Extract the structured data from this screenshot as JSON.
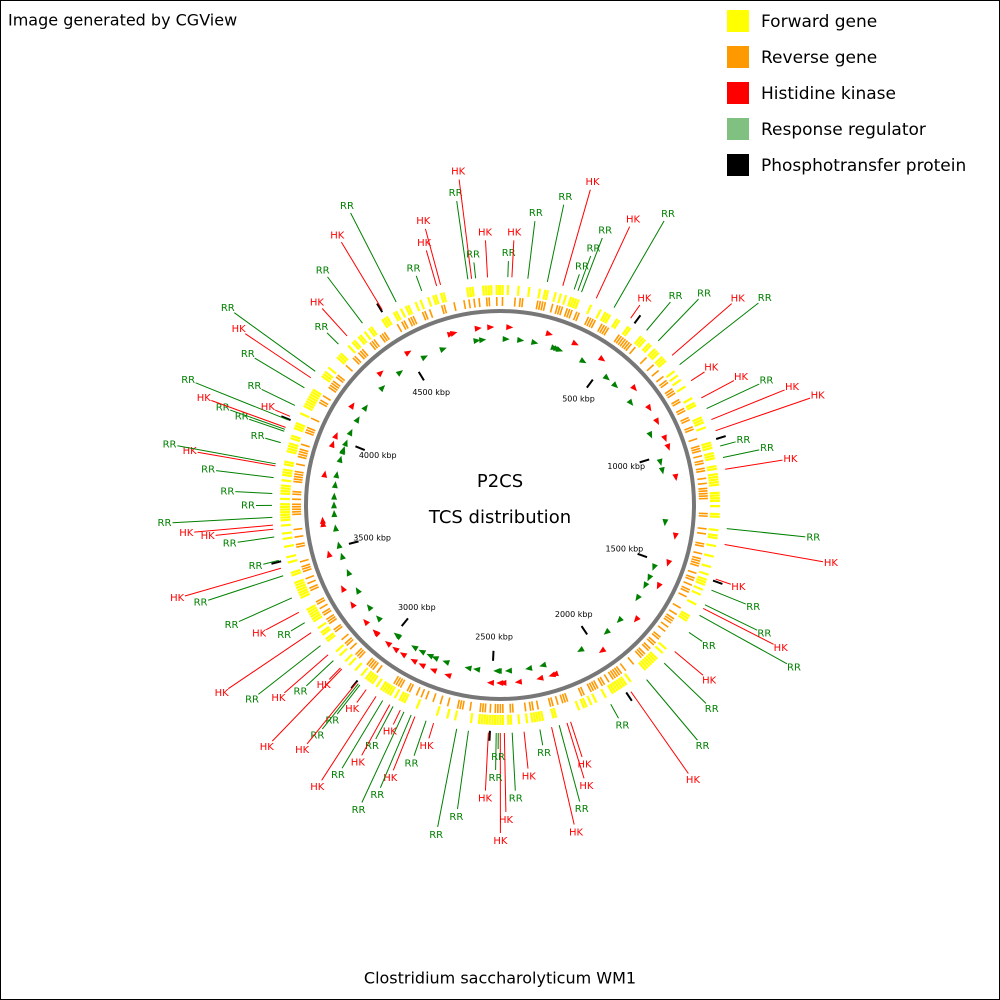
{
  "header": {
    "credit": "Image generated by CGView"
  },
  "legend": [
    {
      "label": "Forward gene",
      "color": "#ffff00"
    },
    {
      "label": "Reverse gene",
      "color": "#ff9900"
    },
    {
      "label": "Histidine kinase",
      "color": "#ff0000"
    },
    {
      "label": "Response regulator",
      "color": "#80c080"
    },
    {
      "label": "Phosphotransfer protein",
      "color": "#000000"
    }
  ],
  "center": {
    "line1": "P2CS",
    "line2": "TCS distribution"
  },
  "footer": {
    "title": "Clostridium saccharolyticum WM1"
  },
  "map": {
    "lim": [
      0,
      4930
    ],
    "ticks": [
      {
        "value": 500,
        "label": "500 kbp"
      },
      {
        "value": 1000,
        "label": "1000 kbp"
      },
      {
        "value": 1500,
        "label": "1500 kbp"
      },
      {
        "value": 2000,
        "label": "2000 kbp"
      },
      {
        "value": 2500,
        "label": "2500 kbp"
      },
      {
        "value": 3000,
        "label": "3000 kbp"
      },
      {
        "value": 3500,
        "label": "3500 kbp"
      },
      {
        "value": 4000,
        "label": "4000 kbp"
      },
      {
        "value": 4500,
        "label": "4500 kbp"
      }
    ],
    "label_colors": {
      "HK": "#ff0000",
      "RR": "#008000"
    },
    "features": [
      {
        "label": "RR",
        "kbp": 27
      },
      {
        "label": "HK",
        "kbp": 41
      },
      {
        "label": "RR",
        "kbp": 96
      },
      {
        "label": "RR",
        "kbp": 164
      },
      {
        "label": "HK",
        "kbp": 219
      },
      {
        "label": "RR",
        "kbp": 260
      },
      {
        "label": "RR",
        "kbp": 274
      },
      {
        "label": "RR",
        "kbp": 287
      },
      {
        "label": "HK",
        "kbp": 342
      },
      {
        "label": "RR",
        "kbp": 411
      },
      {
        "label": "HK",
        "kbp": 479
      },
      {
        "label": "RR",
        "kbp": 548
      },
      {
        "label": "RR",
        "kbp": 602
      },
      {
        "label": "HK",
        "kbp": 671
      },
      {
        "label": "RR",
        "kbp": 712
      },
      {
        "label": "HK",
        "kbp": 780
      },
      {
        "label": "HK",
        "kbp": 849
      },
      {
        "label": "RR",
        "kbp": 890
      },
      {
        "label": "HK",
        "kbp": 931
      },
      {
        "label": "HK",
        "kbp": 972
      },
      {
        "label": "RR",
        "kbp": 1027
      },
      {
        "label": "RR",
        "kbp": 1068
      },
      {
        "label": "HK",
        "kbp": 1109
      },
      {
        "label": "RR",
        "kbp": 1314
      },
      {
        "label": "HK",
        "kbp": 1369
      },
      {
        "label": "HK",
        "kbp": 1492
      },
      {
        "label": "RR",
        "kbp": 1533
      },
      {
        "label": "RR",
        "kbp": 1588
      },
      {
        "label": "HK",
        "kbp": 1602
      },
      {
        "label": "RR",
        "kbp": 1629
      },
      {
        "label": "RR",
        "kbp": 1698
      },
      {
        "label": "HK",
        "kbp": 1780
      },
      {
        "label": "RR",
        "kbp": 1834
      },
      {
        "label": "RR",
        "kbp": 1917
      },
      {
        "label": "HK",
        "kbp": 1985
      },
      {
        "label": "RR",
        "kbp": 2067
      },
      {
        "label": "HK",
        "kbp": 2218
      },
      {
        "label": "HK",
        "kbp": 2231
      },
      {
        "label": "RR",
        "kbp": 2259
      },
      {
        "label": "HK",
        "kbp": 2286
      },
      {
        "label": "RR",
        "kbp": 2327
      },
      {
        "label": "HK",
        "kbp": 2382
      },
      {
        "label": "RR",
        "kbp": 2423
      },
      {
        "label": "HK",
        "kbp": 2450
      },
      {
        "label": "HK",
        "kbp": 2464
      },
      {
        "label": "RR",
        "kbp": 2471
      },
      {
        "label": "RR",
        "kbp": 2478
      },
      {
        "label": "HK",
        "kbp": 2505
      },
      {
        "label": "RR",
        "kbp": 2574
      },
      {
        "label": "RR",
        "kbp": 2615
      },
      {
        "label": "HK",
        "kbp": 2697
      },
      {
        "label": "RR",
        "kbp": 2724
      },
      {
        "label": "HK",
        "kbp": 2765
      },
      {
        "label": "RR",
        "kbp": 2779
      },
      {
        "label": "RR",
        "kbp": 2806
      },
      {
        "label": "HK",
        "kbp": 2820
      },
      {
        "label": "RR",
        "kbp": 2848
      },
      {
        "label": "HK",
        "kbp": 2861
      },
      {
        "label": "RR",
        "kbp": 2889
      },
      {
        "label": "HK",
        "kbp": 2916
      },
      {
        "label": "HK",
        "kbp": 2957
      },
      {
        "label": "RR",
        "kbp": 2984
      },
      {
        "label": "RR",
        "kbp": 2991
      },
      {
        "label": "HK",
        "kbp": 2998
      },
      {
        "label": "HK",
        "kbp": 3067
      },
      {
        "label": "HK",
        "kbp": 3073
      },
      {
        "label": "RR",
        "kbp": 3108
      },
      {
        "label": "HK",
        "kbp": 3135
      },
      {
        "label": "RR",
        "kbp": 3176
      },
      {
        "label": "HK",
        "kbp": 3231
      },
      {
        "label": "RR",
        "kbp": 3272
      },
      {
        "label": "HK",
        "kbp": 3313
      },
      {
        "label": "RR",
        "kbp": 3368
      },
      {
        "label": "RR",
        "kbp": 3450
      },
      {
        "label": "HK",
        "kbp": 3477
      },
      {
        "label": "RR",
        "kbp": 3505
      },
      {
        "label": "RR",
        "kbp": 3587
      },
      {
        "label": "HK",
        "kbp": 3614
      },
      {
        "label": "HK",
        "kbp": 3628
      },
      {
        "label": "RR",
        "kbp": 3655
      },
      {
        "label": "RR",
        "kbp": 3696
      },
      {
        "label": "RR",
        "kbp": 3737
      },
      {
        "label": "RR",
        "kbp": 3792
      },
      {
        "label": "HK",
        "kbp": 3833
      },
      {
        "label": "RR",
        "kbp": 3840
      },
      {
        "label": "RR",
        "kbp": 3915
      },
      {
        "label": "RR",
        "kbp": 3956
      },
      {
        "label": "RR",
        "kbp": 3963
      },
      {
        "label": "HK",
        "kbp": 3970
      },
      {
        "label": "RR",
        "kbp": 3997
      },
      {
        "label": "HK",
        "kbp": 4011
      },
      {
        "label": "RR",
        "kbp": 4052
      },
      {
        "label": "RR",
        "kbp": 4121
      },
      {
        "label": "HK",
        "kbp": 4162
      },
      {
        "label": "RR",
        "kbp": 4189
      },
      {
        "label": "RR",
        "kbp": 4312
      },
      {
        "label": "HK",
        "kbp": 4353
      },
      {
        "label": "RR",
        "kbp": 4422
      },
      {
        "label": "HK",
        "kbp": 4504
      },
      {
        "label": "RR",
        "kbp": 4559
      },
      {
        "label": "RR",
        "kbp": 4655
      },
      {
        "label": "HK",
        "kbp": 4709
      },
      {
        "label": "HK",
        "kbp": 4723
      },
      {
        "label": "RR",
        "kbp": 4819
      },
      {
        "label": "HK",
        "kbp": 4832
      },
      {
        "label": "RR",
        "kbp": 4846
      },
      {
        "label": "HK",
        "kbp": 4887
      }
    ]
  }
}
